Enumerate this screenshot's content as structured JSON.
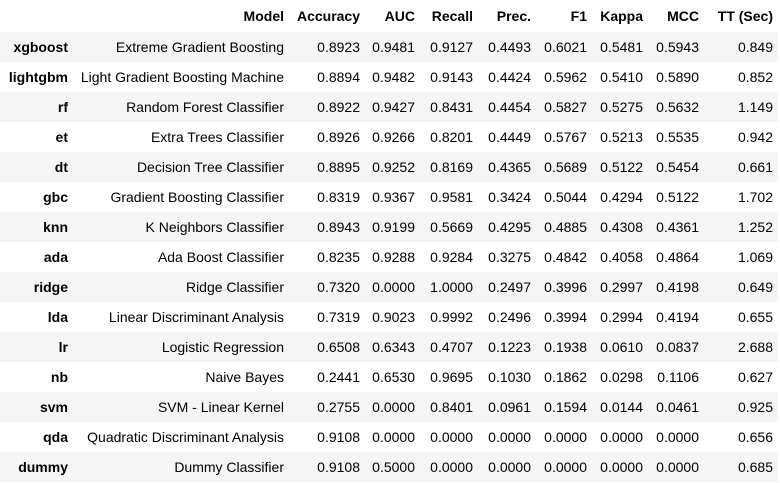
{
  "table": {
    "headers": [
      "",
      "Model",
      "Accuracy",
      "AUC",
      "Recall",
      "Prec.",
      "F1",
      "Kappa",
      "MCC",
      "TT (Sec)"
    ],
    "rows": [
      {
        "id": "xgboost",
        "cells": [
          "Extreme Gradient Boosting",
          "0.8923",
          "0.9481",
          "0.9127",
          "0.4493",
          "0.6021",
          "0.5481",
          "0.5943",
          "0.849"
        ]
      },
      {
        "id": "lightgbm",
        "cells": [
          "Light Gradient Boosting Machine",
          "0.8894",
          "0.9482",
          "0.9143",
          "0.4424",
          "0.5962",
          "0.5410",
          "0.5890",
          "0.852"
        ]
      },
      {
        "id": "rf",
        "cells": [
          "Random Forest Classifier",
          "0.8922",
          "0.9427",
          "0.8431",
          "0.4454",
          "0.5827",
          "0.5275",
          "0.5632",
          "1.149"
        ]
      },
      {
        "id": "et",
        "cells": [
          "Extra Trees Classifier",
          "0.8926",
          "0.9266",
          "0.8201",
          "0.4449",
          "0.5767",
          "0.5213",
          "0.5535",
          "0.942"
        ]
      },
      {
        "id": "dt",
        "cells": [
          "Decision Tree Classifier",
          "0.8895",
          "0.9252",
          "0.8169",
          "0.4365",
          "0.5689",
          "0.5122",
          "0.5454",
          "0.661"
        ]
      },
      {
        "id": "gbc",
        "cells": [
          "Gradient Boosting Classifier",
          "0.8319",
          "0.9367",
          "0.9581",
          "0.3424",
          "0.5044",
          "0.4294",
          "0.5122",
          "1.702"
        ]
      },
      {
        "id": "knn",
        "cells": [
          "K Neighbors Classifier",
          "0.8943",
          "0.9199",
          "0.5669",
          "0.4295",
          "0.4885",
          "0.4308",
          "0.4361",
          "1.252"
        ]
      },
      {
        "id": "ada",
        "cells": [
          "Ada Boost Classifier",
          "0.8235",
          "0.9288",
          "0.9284",
          "0.3275",
          "0.4842",
          "0.4058",
          "0.4864",
          "1.069"
        ]
      },
      {
        "id": "ridge",
        "cells": [
          "Ridge Classifier",
          "0.7320",
          "0.0000",
          "1.0000",
          "0.2497",
          "0.3996",
          "0.2997",
          "0.4198",
          "0.649"
        ]
      },
      {
        "id": "lda",
        "cells": [
          "Linear Discriminant Analysis",
          "0.7319",
          "0.9023",
          "0.9992",
          "0.2496",
          "0.3994",
          "0.2994",
          "0.4194",
          "0.655"
        ]
      },
      {
        "id": "lr",
        "cells": [
          "Logistic Regression",
          "0.6508",
          "0.6343",
          "0.4707",
          "0.1223",
          "0.1938",
          "0.0610",
          "0.0837",
          "2.688"
        ]
      },
      {
        "id": "nb",
        "cells": [
          "Naive Bayes",
          "0.2441",
          "0.6530",
          "0.9695",
          "0.1030",
          "0.1862",
          "0.0298",
          "0.1106",
          "0.627"
        ]
      },
      {
        "id": "svm",
        "cells": [
          "SVM - Linear Kernel",
          "0.2755",
          "0.0000",
          "0.8401",
          "0.0961",
          "0.1594",
          "0.0144",
          "0.0461",
          "0.925"
        ]
      },
      {
        "id": "qda",
        "cells": [
          "Quadratic Discriminant Analysis",
          "0.9108",
          "0.0000",
          "0.0000",
          "0.0000",
          "0.0000",
          "0.0000",
          "0.0000",
          "0.656"
        ]
      },
      {
        "id": "dummy",
        "cells": [
          "Dummy Classifier",
          "0.9108",
          "0.5000",
          "0.0000",
          "0.0000",
          "0.0000",
          "0.0000",
          "0.0000",
          "0.685"
        ]
      }
    ]
  },
  "colors": {
    "stripe": "#f5f5f5",
    "background": "#ffffff",
    "text": "#000000"
  }
}
